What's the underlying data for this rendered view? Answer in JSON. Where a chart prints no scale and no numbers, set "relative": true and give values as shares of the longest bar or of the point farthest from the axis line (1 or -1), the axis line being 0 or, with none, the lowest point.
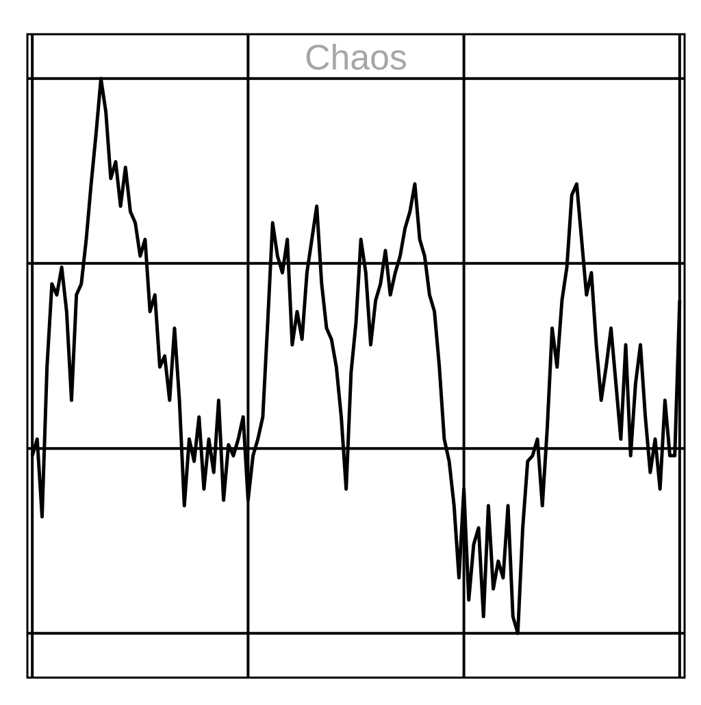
{
  "chart_data": {
    "type": "line",
    "title": "Chaos",
    "relative": true,
    "grid": true,
    "color": "#000000",
    "categories": [
      null,
      null,
      null,
      null,
      null,
      null,
      null,
      null,
      null,
      null,
      null,
      null,
      null,
      null,
      null,
      null,
      null,
      null,
      null,
      null,
      null,
      null,
      null,
      null,
      null,
      null,
      null,
      null,
      null,
      null,
      null,
      null,
      null,
      null,
      null,
      null,
      null,
      null,
      null,
      null,
      null,
      null,
      null,
      null,
      null,
      null,
      null,
      null,
      null,
      null,
      null,
      null,
      null,
      null,
      null,
      null,
      null,
      null,
      null,
      null,
      null,
      null,
      null,
      null,
      null,
      null,
      null,
      null,
      null,
      null,
      null,
      null,
      null,
      null,
      null,
      null,
      null,
      null,
      null,
      null,
      null,
      null,
      null,
      null,
      null,
      null,
      null,
      null,
      null,
      null,
      null,
      null,
      null,
      null,
      null,
      null,
      null,
      null,
      null,
      null,
      null,
      null,
      null,
      null,
      null,
      null,
      null,
      null,
      null,
      null,
      null,
      null,
      null,
      null,
      null,
      null,
      null,
      null,
      null,
      null,
      null,
      null,
      null,
      null,
      null,
      null,
      null,
      null,
      null,
      null,
      null,
      null,
      null
    ],
    "values": [
      0.32,
      0.35,
      0.21,
      0.48,
      0.63,
      0.61,
      0.66,
      0.58,
      0.42,
      0.61,
      0.63,
      0.71,
      0.81,
      0.9,
      1,
      0.94,
      0.82,
      0.85,
      0.77,
      0.84,
      0.76,
      0.74,
      0.68,
      0.71,
      0.58,
      0.61,
      0.48,
      0.5,
      0.42,
      0.55,
      0.42,
      0.23,
      0.35,
      0.31,
      0.39,
      0.26,
      0.35,
      0.29,
      0.42,
      0.24,
      0.34,
      0.32,
      0.35,
      0.39,
      0.24,
      0.32,
      0.35,
      0.39,
      0.56,
      0.74,
      0.68,
      0.65,
      0.71,
      0.52,
      0.58,
      0.53,
      0.65,
      0.71,
      0.77,
      0.63,
      0.55,
      0.53,
      0.48,
      0.39,
      0.26,
      0.47,
      0.56,
      0.71,
      0.65,
      0.52,
      0.6,
      0.63,
      0.69,
      0.61,
      0.65,
      0.68,
      0.73,
      0.76,
      0.81,
      0.71,
      0.68,
      0.61,
      0.58,
      0.48,
      0.35,
      0.31,
      0.23,
      0.1,
      0.26,
      0.06,
      0.16,
      0.19,
      0.03,
      0.23,
      0.08,
      0.13,
      0.1,
      0.23,
      0.03,
      0,
      0.19,
      0.31,
      0.32,
      0.35,
      0.23,
      0.37,
      0.55,
      0.48,
      0.6,
      0.66,
      0.79,
      0.81,
      0.71,
      0.61,
      0.65,
      0.52,
      0.42,
      0.48,
      0.55,
      0.45,
      0.35,
      0.52,
      0.32,
      0.45,
      0.52,
      0.39,
      0.29,
      0.35,
      0.26,
      0.42,
      0.32,
      0.32,
      0.6
    ]
  }
}
